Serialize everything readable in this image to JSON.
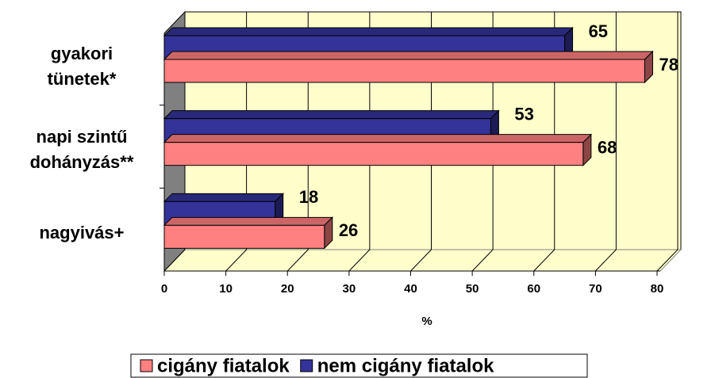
{
  "chart_data": {
    "type": "bar3d_horizontal",
    "categories": [
      "gyakori tünetek*",
      "napi szintű dohányzás**",
      "nagyivás+"
    ],
    "series": [
      {
        "name": "cigány fiatalok",
        "color": "#ff8080",
        "values": [
          78,
          68,
          26
        ]
      },
      {
        "name": "nem cigány fiatalok",
        "color": "#333399",
        "values": [
          65,
          53,
          18
        ]
      }
    ],
    "xlabel": "%",
    "xlim": [
      0,
      80
    ],
    "xticks": [
      0,
      10,
      20,
      30,
      40,
      50,
      60,
      70,
      80
    ],
    "grid": true,
    "legend": "bottom"
  }
}
